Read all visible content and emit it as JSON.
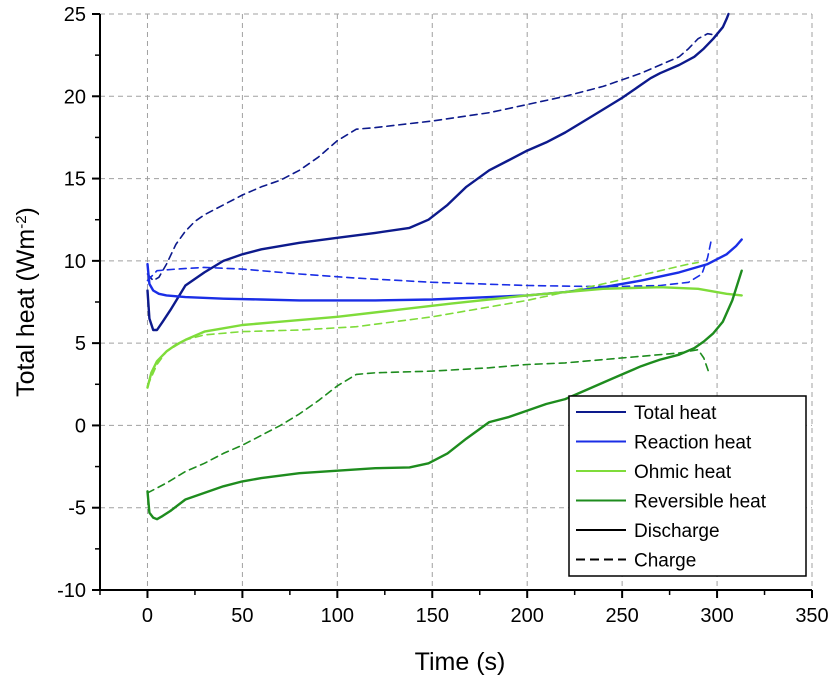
{
  "chart_data": {
    "type": "line",
    "title": "",
    "xlabel": "Time (s)",
    "ylabel": "Total heat (Wm^-2)",
    "ylabel_parts": {
      "main": "Total heat (Wm",
      "sup": "-2",
      "close": ")"
    },
    "xlim": [
      -25,
      350
    ],
    "ylim": [
      -10,
      25
    ],
    "xticks": [
      0,
      50,
      100,
      150,
      200,
      250,
      300,
      350
    ],
    "yticks": [
      -10,
      -5,
      0,
      5,
      10,
      15,
      20,
      25
    ],
    "xtick_labels": [
      "0",
      "50",
      "100",
      "150",
      "200",
      "250",
      "300",
      "350"
    ],
    "ytick_labels": [
      "-10",
      "-5",
      "0",
      "5",
      "10",
      "15",
      "20",
      "25"
    ],
    "grid": true,
    "legend_position": "bottom-right",
    "legend": [
      {
        "label": "Total heat",
        "color": "#0d1a8c",
        "style": "solid"
      },
      {
        "label": "Reaction heat",
        "color": "#1a2ee6",
        "style": "solid"
      },
      {
        "label": "Ohmic heat",
        "color": "#7fdc3a",
        "style": "solid"
      },
      {
        "label": "Reversible heat",
        "color": "#1e8c1e",
        "style": "solid"
      },
      {
        "label": "Discharge",
        "color": "#000000",
        "style": "solid"
      },
      {
        "label": "Charge",
        "color": "#000000",
        "style": "dashed"
      }
    ],
    "series": [
      {
        "group": "Total heat",
        "mode": "Discharge",
        "color": "#0d1a8c",
        "style": "solid",
        "x": [
          0,
          1,
          3,
          5,
          8,
          12,
          20,
          30,
          40,
          50,
          60,
          80,
          100,
          120,
          138,
          148,
          158,
          168,
          180,
          190,
          200,
          210,
          220,
          230,
          240,
          250,
          260,
          265,
          270,
          280,
          288,
          293,
          298,
          303,
          305,
          306
        ],
        "y": [
          8.2,
          6.5,
          5.8,
          5.8,
          6.3,
          7.0,
          8.5,
          9.3,
          10.0,
          10.4,
          10.7,
          11.1,
          11.4,
          11.7,
          12.0,
          12.5,
          13.4,
          14.5,
          15.5,
          16.1,
          16.7,
          17.2,
          17.8,
          18.5,
          19.2,
          19.9,
          20.7,
          21.1,
          21.4,
          21.9,
          22.4,
          22.9,
          23.5,
          24.2,
          24.7,
          25.0
        ]
      },
      {
        "group": "Total heat",
        "mode": "Charge",
        "color": "#0d1a8c",
        "style": "dashed",
        "x": [
          0,
          3,
          6,
          10,
          15,
          20,
          25,
          30,
          40,
          50,
          60,
          70,
          80,
          90,
          100,
          110,
          120,
          150,
          180,
          200,
          220,
          240,
          260,
          280,
          285,
          290,
          295,
          300
        ],
        "y": [
          9.2,
          8.8,
          9.0,
          9.8,
          11.0,
          11.8,
          12.4,
          12.8,
          13.4,
          14.0,
          14.5,
          14.9,
          15.5,
          16.3,
          17.3,
          18.0,
          18.1,
          18.5,
          19.0,
          19.5,
          20.0,
          20.6,
          21.4,
          22.4,
          22.9,
          23.5,
          23.8,
          23.7
        ]
      },
      {
        "group": "Reaction heat",
        "mode": "Discharge",
        "color": "#1a2ee6",
        "style": "solid",
        "x": [
          0,
          1,
          3,
          6,
          10,
          20,
          40,
          60,
          80,
          100,
          120,
          150,
          180,
          200,
          220,
          240,
          260,
          280,
          295,
          305,
          310,
          313
        ],
        "y": [
          9.8,
          8.6,
          8.2,
          8.0,
          7.9,
          7.8,
          7.7,
          7.65,
          7.6,
          7.6,
          7.6,
          7.65,
          7.8,
          7.9,
          8.1,
          8.4,
          8.8,
          9.3,
          9.8,
          10.4,
          10.9,
          11.3
        ]
      },
      {
        "group": "Reaction heat",
        "mode": "Charge",
        "color": "#1a2ee6",
        "style": "dashed",
        "x": [
          0,
          5,
          15,
          30,
          50,
          80,
          110,
          150,
          200,
          230,
          250,
          270,
          285,
          292,
          295,
          297
        ],
        "y": [
          8.8,
          9.4,
          9.5,
          9.6,
          9.5,
          9.2,
          8.95,
          8.7,
          8.5,
          8.45,
          8.45,
          8.5,
          8.7,
          9.2,
          10.2,
          11.3
        ]
      },
      {
        "group": "Ohmic heat",
        "mode": "Discharge",
        "color": "#7fdc3a",
        "style": "solid",
        "x": [
          0,
          2,
          5,
          10,
          15,
          20,
          30,
          40,
          50,
          70,
          100,
          130,
          160,
          200,
          240,
          270,
          290,
          305,
          313
        ],
        "y": [
          2.3,
          3.2,
          3.9,
          4.5,
          4.9,
          5.2,
          5.7,
          5.9,
          6.1,
          6.3,
          6.6,
          7.0,
          7.4,
          7.9,
          8.3,
          8.4,
          8.3,
          8.0,
          7.9
        ]
      },
      {
        "group": "Ohmic heat",
        "mode": "Charge",
        "color": "#7fdc3a",
        "style": "dashed",
        "x": [
          0,
          5,
          10,
          20,
          30,
          50,
          80,
          110,
          150,
          200,
          240,
          270,
          285,
          290
        ],
        "y": [
          2.4,
          3.7,
          4.5,
          5.2,
          5.5,
          5.7,
          5.8,
          6.0,
          6.6,
          7.6,
          8.6,
          9.4,
          9.8,
          9.9
        ]
      },
      {
        "group": "Reversible heat",
        "mode": "Discharge",
        "color": "#1e8c1e",
        "style": "solid",
        "x": [
          0,
          1,
          3,
          5,
          8,
          12,
          20,
          30,
          40,
          50,
          60,
          80,
          100,
          120,
          138,
          148,
          158,
          168,
          180,
          190,
          200,
          210,
          220,
          230,
          240,
          250,
          260,
          265,
          270,
          280,
          288,
          293,
          298,
          303,
          308,
          313
        ],
        "y": [
          -4.0,
          -5.3,
          -5.6,
          -5.7,
          -5.5,
          -5.2,
          -4.5,
          -4.1,
          -3.7,
          -3.4,
          -3.2,
          -2.9,
          -2.75,
          -2.6,
          -2.55,
          -2.3,
          -1.7,
          -0.8,
          0.2,
          0.5,
          0.9,
          1.3,
          1.6,
          2.1,
          2.6,
          3.1,
          3.6,
          3.8,
          4.0,
          4.3,
          4.7,
          5.1,
          5.6,
          6.3,
          7.6,
          9.4
        ]
      },
      {
        "group": "Reversible heat",
        "mode": "Charge",
        "color": "#1e8c1e",
        "style": "dashed",
        "x": [
          0,
          5,
          10,
          20,
          30,
          40,
          50,
          60,
          70,
          80,
          90,
          100,
          110,
          120,
          150,
          180,
          200,
          220,
          240,
          260,
          280,
          290,
          293,
          296
        ],
        "y": [
          -4.1,
          -3.8,
          -3.5,
          -2.8,
          -2.3,
          -1.7,
          -1.2,
          -0.6,
          0.0,
          0.7,
          1.5,
          2.4,
          3.1,
          3.2,
          3.3,
          3.5,
          3.7,
          3.8,
          4.0,
          4.2,
          4.4,
          4.6,
          4.1,
          3.1
        ]
      }
    ]
  }
}
